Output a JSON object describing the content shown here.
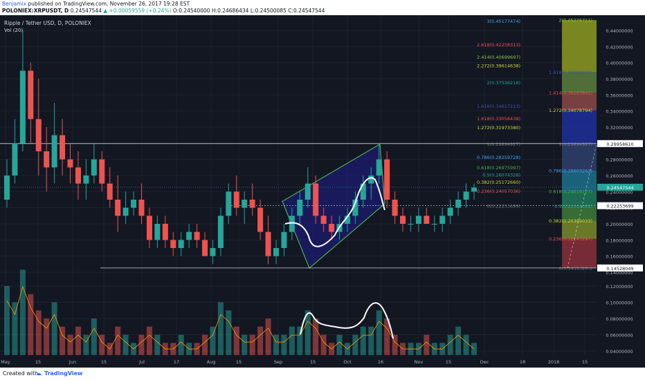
{
  "header": {
    "author": "Benjamix",
    "published": "published on TradingView.com, November 26, 2017 19:28 EST",
    "symbol": "POLONIEX:XRPUSDT, D",
    "last": "0.24547544",
    "change": "▲ +0.00059559 (+0.24%)",
    "o": "O:0.24540000",
    "h": "H:0.24686434",
    "l": "L:0.24500085",
    "c": "C:0.24547544"
  },
  "footer": {
    "created_with": "Created with",
    "brand": "TradingView"
  },
  "colors": {
    "bg": "#131722",
    "up": "#26a69a",
    "down": "#ef5350",
    "pattern": "#1e1e8c",
    "pattern_edge": "#4caf50",
    "drawing": "#ffffff"
  },
  "chart_data": {
    "type": "candlestick",
    "title": "Ripple / Tether USD, D, POLONIEX",
    "indicator": "Vol (20)",
    "y_ticks": [
      "0.44000000",
      "0.42000000",
      "0.40000000",
      "0.38000000",
      "0.36000000",
      "0.34000000",
      "0.32000000",
      "0.30000000",
      "0.28000000",
      "0.26000000",
      "0.24000000",
      "0.22000000",
      "0.20000000",
      "0.18000000",
      "0.16000000",
      "0.14000000",
      "0.12000000",
      "0.10000000",
      "0.08000000",
      "0.06000000",
      "0.04000000"
    ],
    "x_ticks": [
      "May",
      "15",
      "Jun",
      "15",
      "Jul",
      "17",
      "Aug",
      "15",
      "Sep",
      "15",
      "Oct",
      "16",
      "Nov",
      "15",
      "Dec",
      "18",
      "2018",
      "15"
    ],
    "price_tags": [
      {
        "value": 0.2995861,
        "label": "0.29958610",
        "type": "line"
      },
      {
        "value": 0.24547544,
        "label": "0.24547544",
        "type": "last"
      },
      {
        "value": 0.22253699,
        "label": "0.22253699",
        "type": "line"
      },
      {
        "value": 0.14528049,
        "label": "0.14528049",
        "type": "line"
      }
    ],
    "fib_left": [
      {
        "v": 0.4517,
        "label": "3(0.45177474)",
        "color": "#42a5f5"
      },
      {
        "v": 0.4226,
        "label": "2.618(0.42258313)",
        "color": "#ef5350"
      },
      {
        "v": 0.407,
        "label": "2.414(0.40699697)",
        "color": "#8bc34a"
      },
      {
        "v": 0.3961,
        "label": "2.272(0.39614638)",
        "color": "#cddc39"
      },
      {
        "v": 0.3754,
        "label": "2(0.37536216)",
        "color": "#26a69a"
      },
      {
        "v": 0.3462,
        "label": "1.618(0.34617213)",
        "color": "#3f51b5"
      },
      {
        "v": 0.3306,
        "label": "1.618(0.33058438)",
        "color": "#ef5350"
      },
      {
        "v": 0.3197,
        "label": "1.272(0.31973380)",
        "color": "#cddc39"
      },
      {
        "v": 0.2989,
        "label": "1(0.29894927)",
        "color": "#787b86"
      },
      {
        "v": 0.2826,
        "label": "0.786(0.28259728)",
        "color": "#42a5f5"
      },
      {
        "v": 0.2698,
        "label": "0.618(0.26975997)",
        "color": "#4caf50"
      },
      {
        "v": 0.2607,
        "label": "0.5(0.26074328)",
        "color": "#26a69a"
      },
      {
        "v": 0.2517,
        "label": "0.382(0.25172660)",
        "color": "#cddc39"
      },
      {
        "v": 0.2406,
        "label": "0.236(0.24057036)",
        "color": "#ef5350"
      },
      {
        "v": 0.2225,
        "label": "0(0.22253699)",
        "color": "#787b86"
      }
    ],
    "fib_right": [
      {
        "v": 0.4528,
        "label": "2(0.45276711)",
        "color": "#8bc34a"
      },
      {
        "v": 0.388,
        "label": "1.618(0.38808080)",
        "color": "#3f51b5"
      },
      {
        "v": 0.3628,
        "label": "1.414(0.36283802)",
        "color": "#ef5350"
      },
      {
        "v": 0.3408,
        "label": "1.272(0.34078794)",
        "color": "#cddc39"
      },
      {
        "v": 0.2989,
        "label": "1(0.29894927)",
        "color": "#787b86"
      },
      {
        "v": 0.266,
        "label": "0.786(0.26603262)",
        "color": "#42a5f5"
      },
      {
        "v": 0.2402,
        "label": "0.618(0.24019127)",
        "color": "#4caf50"
      },
      {
        "v": 0.222,
        "label": "0.5(0.22204088)",
        "color": "#26a69a"
      },
      {
        "v": 0.2039,
        "label": "0.382(0.20389033)",
        "color": "#cddc39"
      },
      {
        "v": 0.1814,
        "label": "0.236(0.18143297)",
        "color": "#ef5350"
      },
      {
        "v": 0.1451,
        "label": "0(0.14513203)",
        "color": "#787b86"
      }
    ],
    "fib_zones": [
      {
        "from": 0.4528,
        "to": 0.388,
        "color": "#8d9a1e"
      },
      {
        "from": 0.388,
        "to": 0.3628,
        "color": "#5b7f3a"
      },
      {
        "from": 0.3628,
        "to": 0.3408,
        "color": "#8c4848"
      },
      {
        "from": 0.3408,
        "to": 0.2989,
        "color": "#1f2f9a"
      },
      {
        "from": 0.2989,
        "to": 0.266,
        "color": "#2f3f6a"
      },
      {
        "from": 0.266,
        "to": 0.2402,
        "color": "#1f6f8a"
      },
      {
        "from": 0.2402,
        "to": 0.222,
        "color": "#1f7a5a"
      },
      {
        "from": 0.222,
        "to": 0.2039,
        "color": "#3f7a3a"
      },
      {
        "from": 0.2039,
        "to": 0.1814,
        "color": "#7a8a2a"
      },
      {
        "from": 0.1814,
        "to": 0.1451,
        "color": "#8a2f3a"
      }
    ],
    "ohlc": [
      [
        0.23,
        0.28,
        0.22,
        0.26
      ],
      [
        0.26,
        0.33,
        0.25,
        0.3
      ],
      [
        0.3,
        0.44,
        0.29,
        0.39
      ],
      [
        0.39,
        0.4,
        0.3,
        0.33
      ],
      [
        0.33,
        0.38,
        0.26,
        0.29
      ],
      [
        0.29,
        0.32,
        0.24,
        0.27
      ],
      [
        0.27,
        0.35,
        0.25,
        0.31
      ],
      [
        0.31,
        0.33,
        0.26,
        0.28
      ],
      [
        0.28,
        0.3,
        0.25,
        0.27
      ],
      [
        0.27,
        0.29,
        0.23,
        0.25
      ],
      [
        0.25,
        0.28,
        0.23,
        0.26
      ],
      [
        0.26,
        0.3,
        0.25,
        0.28
      ],
      [
        0.28,
        0.29,
        0.24,
        0.25
      ],
      [
        0.25,
        0.27,
        0.22,
        0.23
      ],
      [
        0.23,
        0.26,
        0.19,
        0.21
      ],
      [
        0.21,
        0.24,
        0.2,
        0.22
      ],
      [
        0.22,
        0.24,
        0.21,
        0.23
      ],
      [
        0.23,
        0.25,
        0.2,
        0.21
      ],
      [
        0.21,
        0.22,
        0.17,
        0.18
      ],
      [
        0.18,
        0.21,
        0.17,
        0.2
      ],
      [
        0.2,
        0.21,
        0.17,
        0.18
      ],
      [
        0.18,
        0.19,
        0.16,
        0.17
      ],
      [
        0.17,
        0.19,
        0.16,
        0.18
      ],
      [
        0.18,
        0.2,
        0.17,
        0.19
      ],
      [
        0.19,
        0.2,
        0.17,
        0.18
      ],
      [
        0.18,
        0.19,
        0.16,
        0.16
      ],
      [
        0.16,
        0.18,
        0.15,
        0.17
      ],
      [
        0.17,
        0.22,
        0.16,
        0.21
      ],
      [
        0.21,
        0.25,
        0.2,
        0.24
      ],
      [
        0.24,
        0.26,
        0.21,
        0.22
      ],
      [
        0.22,
        0.24,
        0.2,
        0.23
      ],
      [
        0.23,
        0.25,
        0.21,
        0.22
      ],
      [
        0.22,
        0.23,
        0.18,
        0.19
      ],
      [
        0.19,
        0.21,
        0.15,
        0.16
      ],
      [
        0.16,
        0.18,
        0.15,
        0.17
      ],
      [
        0.17,
        0.2,
        0.16,
        0.19
      ],
      [
        0.19,
        0.22,
        0.18,
        0.21
      ],
      [
        0.21,
        0.24,
        0.2,
        0.23
      ],
      [
        0.23,
        0.27,
        0.22,
        0.25
      ],
      [
        0.25,
        0.26,
        0.2,
        0.21
      ],
      [
        0.21,
        0.22,
        0.19,
        0.2
      ],
      [
        0.2,
        0.21,
        0.18,
        0.19
      ],
      [
        0.19,
        0.21,
        0.18,
        0.2
      ],
      [
        0.2,
        0.22,
        0.19,
        0.21
      ],
      [
        0.21,
        0.24,
        0.2,
        0.23
      ],
      [
        0.23,
        0.26,
        0.22,
        0.25
      ],
      [
        0.25,
        0.27,
        0.23,
        0.26
      ],
      [
        0.26,
        0.3,
        0.25,
        0.28
      ],
      [
        0.28,
        0.29,
        0.22,
        0.23
      ],
      [
        0.23,
        0.24,
        0.2,
        0.21
      ],
      [
        0.21,
        0.22,
        0.19,
        0.2
      ],
      [
        0.2,
        0.21,
        0.19,
        0.2
      ],
      [
        0.2,
        0.22,
        0.19,
        0.21
      ],
      [
        0.21,
        0.22,
        0.2,
        0.2
      ],
      [
        0.2,
        0.21,
        0.19,
        0.2
      ],
      [
        0.2,
        0.22,
        0.19,
        0.21
      ],
      [
        0.21,
        0.23,
        0.2,
        0.22
      ],
      [
        0.22,
        0.24,
        0.21,
        0.23
      ],
      [
        0.23,
        0.25,
        0.22,
        0.24
      ],
      [
        0.24,
        0.25,
        0.23,
        0.245
      ]
    ],
    "volume": [
      0.12,
      0.1,
      0.14,
      0.11,
      0.09,
      0.08,
      0.1,
      0.07,
      0.06,
      0.07,
      0.06,
      0.08,
      0.06,
      0.05,
      0.07,
      0.06,
      0.05,
      0.06,
      0.07,
      0.06,
      0.05,
      0.05,
      0.06,
      0.05,
      0.05,
      0.06,
      0.07,
      0.1,
      0.09,
      0.07,
      0.06,
      0.06,
      0.07,
      0.08,
      0.06,
      0.06,
      0.07,
      0.07,
      0.09,
      0.08,
      0.06,
      0.05,
      0.06,
      0.05,
      0.06,
      0.07,
      0.07,
      0.09,
      0.08,
      0.06,
      0.05,
      0.05,
      0.05,
      0.06,
      0.05,
      0.05,
      0.06,
      0.07,
      0.06,
      0.05
    ]
  }
}
